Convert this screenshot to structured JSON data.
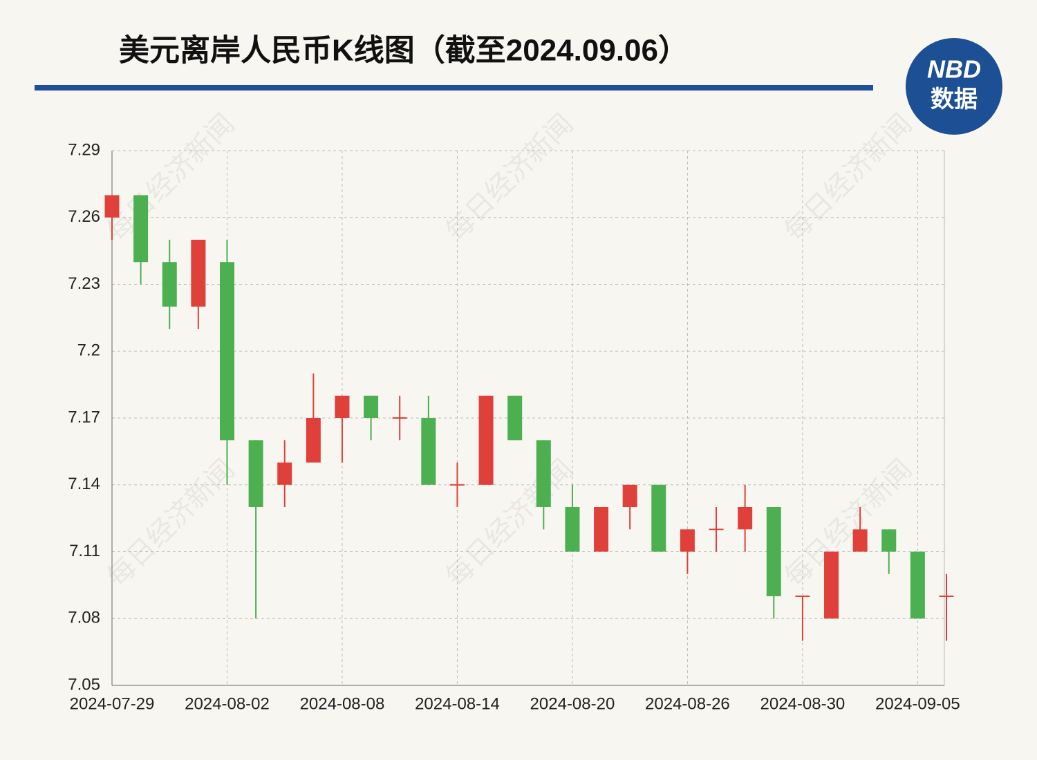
{
  "chart_data": {
    "type": "candlestick",
    "title": "美元离岸人民币K线图（截至2024.09.06）",
    "logo": {
      "top": "NBD",
      "bottom": "数据"
    },
    "watermark": "每日经济新闻",
    "categories": [
      "2024-07-29",
      null,
      null,
      null,
      "2024-08-02",
      null,
      null,
      null,
      "2024-08-08",
      null,
      null,
      null,
      "2024-08-14",
      null,
      null,
      null,
      "2024-08-20",
      null,
      null,
      null,
      "2024-08-26",
      null,
      null,
      null,
      "2024-08-30",
      null,
      null,
      null,
      "2024-09-05",
      null
    ],
    "open": [
      7.26,
      7.27,
      7.24,
      7.22,
      7.24,
      7.16,
      7.14,
      7.15,
      7.17,
      7.18,
      7.17,
      7.17,
      7.14,
      7.14,
      7.18,
      7.16,
      7.13,
      7.11,
      7.13,
      7.14,
      7.11,
      7.12,
      7.12,
      7.13,
      7.09,
      7.08,
      7.11,
      7.12,
      7.11,
      7.09
    ],
    "high": [
      7.27,
      7.27,
      7.25,
      7.25,
      7.25,
      7.16,
      7.16,
      7.19,
      7.18,
      7.18,
      7.18,
      7.18,
      7.15,
      7.18,
      7.18,
      7.16,
      7.14,
      7.13,
      7.14,
      7.14,
      7.12,
      7.13,
      7.14,
      7.13,
      7.09,
      7.11,
      7.13,
      7.12,
      7.11,
      7.1
    ],
    "low": [
      7.25,
      7.23,
      7.21,
      7.21,
      7.14,
      7.08,
      7.13,
      7.15,
      7.15,
      7.16,
      7.16,
      7.14,
      7.13,
      7.14,
      7.16,
      7.12,
      7.11,
      7.11,
      7.12,
      7.11,
      7.1,
      7.11,
      7.11,
      7.08,
      7.07,
      7.08,
      7.11,
      7.1,
      7.08,
      7.07
    ],
    "close": [
      7.27,
      7.24,
      7.22,
      7.25,
      7.16,
      7.13,
      7.15,
      7.17,
      7.18,
      7.17,
      7.17,
      7.14,
      7.14,
      7.18,
      7.16,
      7.13,
      7.11,
      7.13,
      7.14,
      7.11,
      7.12,
      7.12,
      7.13,
      7.09,
      7.09,
      7.11,
      7.12,
      7.11,
      7.08,
      7.09
    ],
    "up_color": "#e0403a",
    "down_color": "#4caf50",
    "ylim": [
      7.05,
      7.29
    ],
    "yticks": [
      7.05,
      7.08,
      7.11,
      7.14,
      7.17,
      7.2,
      7.23,
      7.26,
      7.29
    ],
    "grid": true
  }
}
